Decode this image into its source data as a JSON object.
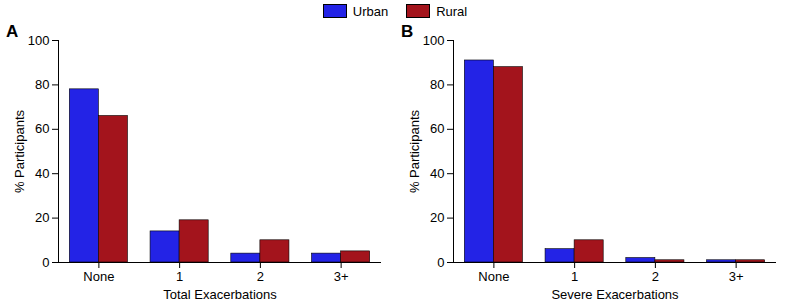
{
  "chart_data": [
    {
      "type": "bar",
      "title": "A",
      "categories": [
        "None",
        "1",
        "2",
        "3+"
      ],
      "series": [
        {
          "name": "Urban",
          "color": "#2323e6",
          "values": [
            78,
            14,
            4,
            4
          ]
        },
        {
          "name": "Rural",
          "color": "#a3141c",
          "values": [
            66,
            19,
            10,
            5
          ]
        }
      ],
      "xlabel": "Total Exacerbations",
      "ylabel": "% Participants",
      "ylim": [
        0,
        100
      ],
      "yticks": [
        0,
        20,
        40,
        60,
        80,
        100
      ],
      "grid": false,
      "legend": "top"
    },
    {
      "type": "bar",
      "title": "B",
      "categories": [
        "None",
        "1",
        "2",
        "3+"
      ],
      "series": [
        {
          "name": "Urban",
          "color": "#2323e6",
          "values": [
            91,
            6,
            2,
            1
          ]
        },
        {
          "name": "Rural",
          "color": "#a3141c",
          "values": [
            88,
            10,
            1,
            1
          ]
        }
      ],
      "xlabel": "Severe Exacerbations",
      "ylabel": "% Participants",
      "ylim": [
        0,
        100
      ],
      "yticks": [
        0,
        20,
        40,
        60,
        80,
        100
      ],
      "grid": false,
      "legend": "top"
    }
  ]
}
